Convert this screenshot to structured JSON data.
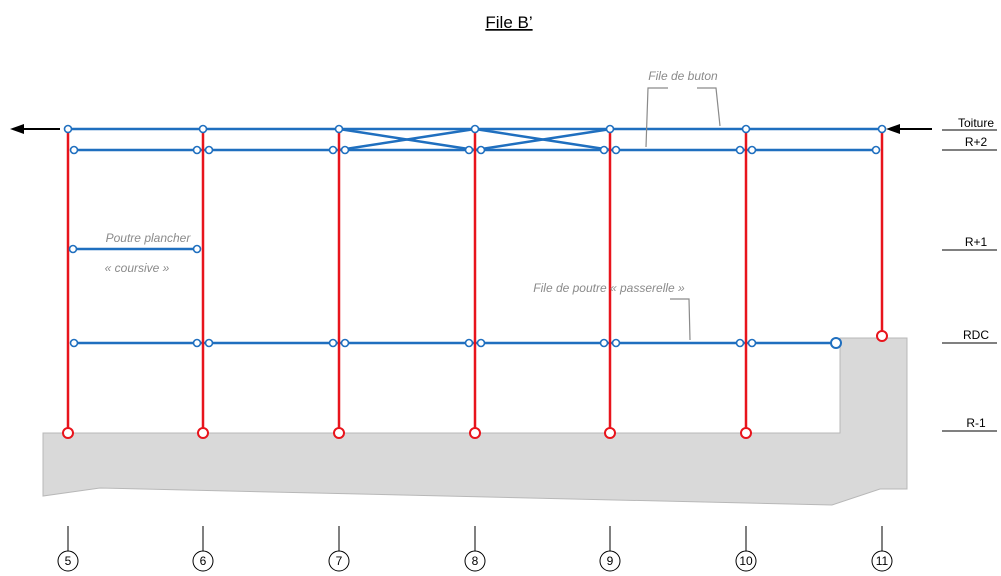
{
  "title": "File B’",
  "levels": [
    {
      "key": "toiture",
      "label": "Toiture"
    },
    {
      "key": "r2",
      "label": "R+2"
    },
    {
      "key": "r1",
      "label": "R+1"
    },
    {
      "key": "rdc",
      "label": "RDC"
    },
    {
      "key": "rm1",
      "label": "R-1"
    }
  ],
  "axes": [
    "5",
    "6",
    "7",
    "8",
    "9",
    "10",
    "11"
  ],
  "annotations": {
    "buton": "File de buton",
    "poutre_plancher": "Poutre plancher",
    "coursive": "« coursive »",
    "passerelle": "File de poutre « passerelle »"
  },
  "colors": {
    "column": "#e8141c",
    "beam": "#1f6fbf",
    "ground": "#d9d9d9",
    "ground_stroke": "#b8b8b8",
    "annotation": "#8a8a8a",
    "arrow": "#000000"
  }
}
